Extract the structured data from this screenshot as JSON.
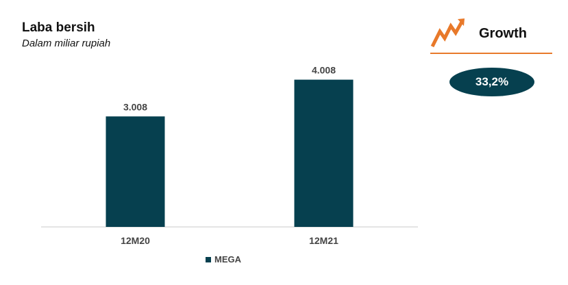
{
  "header": {
    "title": "Laba bersih",
    "subtitle": "Dalam miliar rupiah"
  },
  "growth": {
    "label": "Growth",
    "value": "33,2%",
    "icon": "trend-up-arrow-icon",
    "accent_color": "#e8792a",
    "badge_color": "#06404f"
  },
  "chart_data": {
    "type": "bar",
    "categories": [
      "12M20",
      "12M21"
    ],
    "series": [
      {
        "name": "MEGA",
        "values": [
          3008,
          4008
        ],
        "labels": [
          "3.008",
          "4.008"
        ],
        "color": "#06404f"
      }
    ],
    "ylim": [
      0,
      4800
    ],
    "grid": false,
    "legend": "bottom"
  }
}
